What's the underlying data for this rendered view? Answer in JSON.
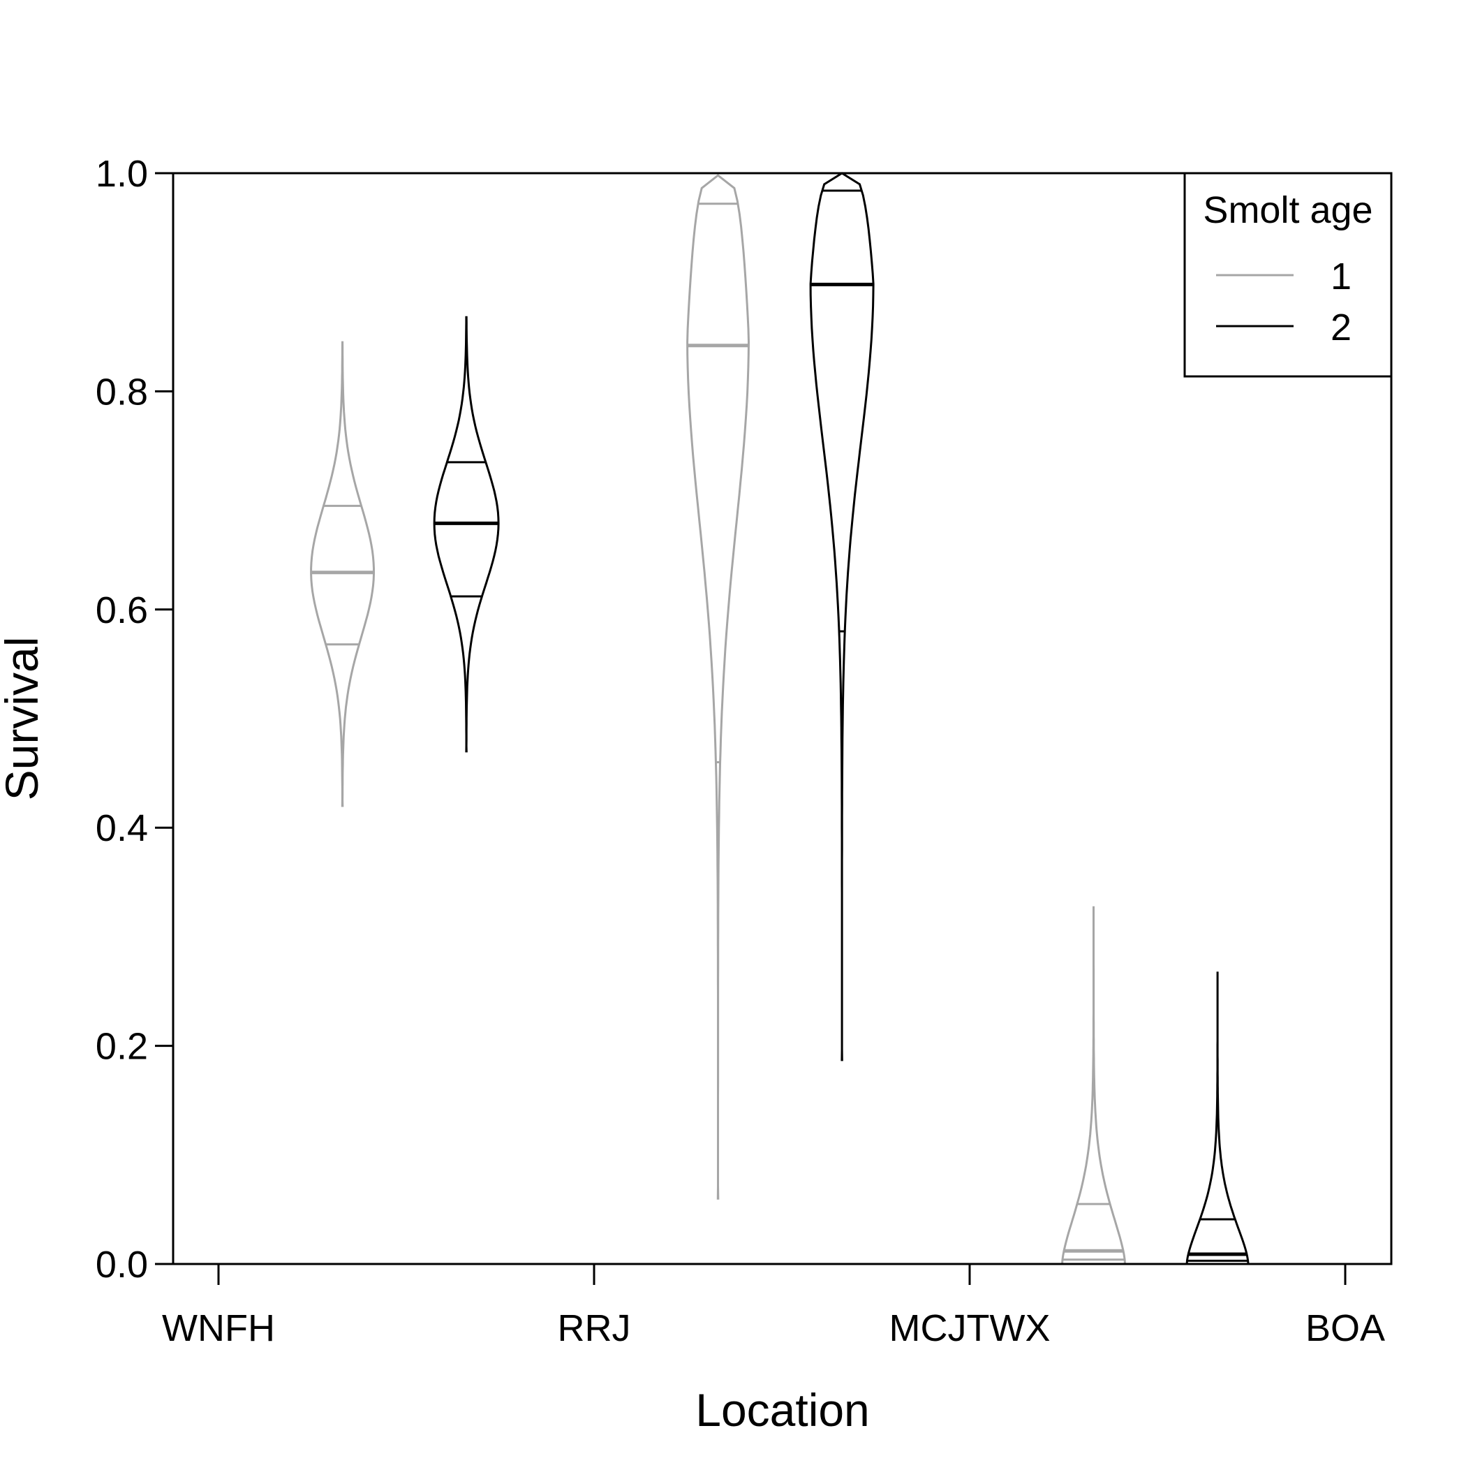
{
  "chart_data": {
    "type": "violin",
    "xlabel": "Location",
    "ylabel": "Survival",
    "ylim": [
      0,
      1
    ],
    "yticks": [
      "0.0",
      "0.2",
      "0.4",
      "0.6",
      "0.8",
      "1.0"
    ],
    "categories": [
      "WNFH",
      "RRJ",
      "MCJTWX",
      "BOA"
    ],
    "legend": {
      "title": "Smolt age",
      "position": "top-right",
      "entries": [
        {
          "label": "1",
          "color": "#a6a6a6"
        },
        {
          "label": "2",
          "color": "#000000"
        }
      ]
    },
    "intervals": [
      {
        "segment": "WNFH to RRJ",
        "series": "1",
        "color": "#a6a6a6",
        "min": 0.42,
        "q_low": 0.568,
        "median": 0.634,
        "q_high": 0.695,
        "max": 0.845,
        "peak": 0.635,
        "shape": "bell"
      },
      {
        "segment": "WNFH to RRJ",
        "series": "2",
        "color": "#000000",
        "min": 0.47,
        "q_low": 0.612,
        "median": 0.679,
        "q_high": 0.735,
        "max": 0.868,
        "peak": 0.679,
        "shape": "bell"
      },
      {
        "segment": "RRJ to MCJTWX",
        "series": "1",
        "color": "#a6a6a6",
        "min": 0.06,
        "q_low": 0.46,
        "median": 0.842,
        "q_high": 0.972,
        "max": 0.998,
        "peak": 0.85,
        "shape": "upper"
      },
      {
        "segment": "RRJ to MCJTWX",
        "series": "2",
        "color": "#000000",
        "min": 0.187,
        "q_low": 0.58,
        "median": 0.898,
        "q_high": 0.984,
        "max": 1.0,
        "peak": 0.9,
        "shape": "upper"
      },
      {
        "segment": "MCJTWX to BOA",
        "series": "1",
        "color": "#a6a6a6",
        "min": 0.0,
        "q_low": 0.004,
        "median": 0.012,
        "q_high": 0.055,
        "max": 0.328,
        "peak": 0.0,
        "shape": "lower"
      },
      {
        "segment": "MCJTWX to BOA",
        "series": "2",
        "color": "#000000",
        "min": 0.0,
        "q_low": 0.003,
        "median": 0.009,
        "q_high": 0.041,
        "max": 0.268,
        "peak": 0.0,
        "shape": "lower"
      }
    ]
  }
}
